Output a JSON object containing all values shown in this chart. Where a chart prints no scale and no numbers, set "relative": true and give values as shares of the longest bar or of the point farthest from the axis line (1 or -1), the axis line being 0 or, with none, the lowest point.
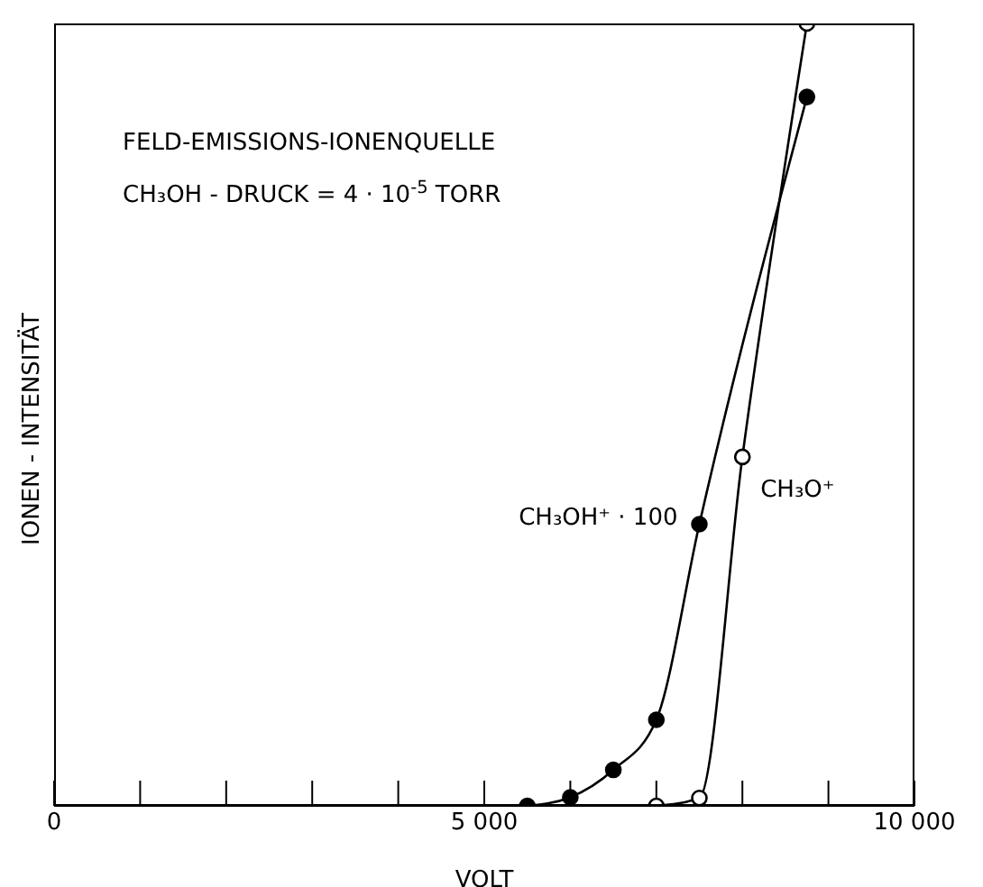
{
  "chart_data": {
    "type": "line",
    "title": "FELD-EMISSIONS-IONENQUELLE",
    "subtitle": "CH₃OH - DRUCK = 4 · 10$^{-5}$ TORR",
    "xlabel": "VOLT",
    "ylabel": "IONEN - INTENSITÄT",
    "relative": true,
    "xlim": [
      0,
      10000
    ],
    "xticks": [
      {
        "value": 0,
        "label": "0"
      },
      {
        "value": 1000,
        "label": null
      },
      {
        "value": 2000,
        "label": null
      },
      {
        "value": 3000,
        "label": null
      },
      {
        "value": 4000,
        "label": null
      },
      {
        "value": 5000,
        "label": "5 000"
      },
      {
        "value": 6000,
        "label": null
      },
      {
        "value": 7000,
        "label": null
      },
      {
        "value": 8000,
        "label": null
      },
      {
        "value": 9000,
        "label": null
      },
      {
        "value": 10000,
        "label": "10 000"
      }
    ],
    "series": [
      {
        "name": "CH₃OH⁺ · 100",
        "color": "#000000",
        "x": [
          5500,
          6000,
          6500,
          7000,
          7500,
          8750
        ],
        "values": [
          0,
          0.011,
          0.046,
          0.11,
          0.36,
          0.906
        ]
      },
      {
        "name": "CH₃O⁺",
        "color": "#000000",
        "x": [
          7000,
          7500,
          8000,
          8750
        ],
        "values": [
          0,
          0.01,
          0.446,
          1
        ]
      }
    ],
    "marker": "circle",
    "line_style": "solid"
  }
}
